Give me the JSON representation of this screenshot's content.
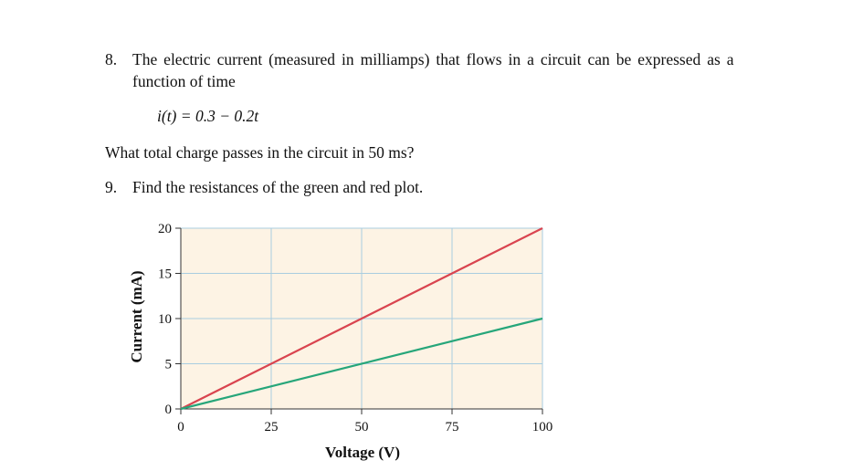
{
  "questions": {
    "q8": {
      "number": "8.",
      "line1": "The electric current (measured in milliamps) that flows in a circuit can be expressed as a",
      "line2": "function of time",
      "equation": "i(t) = 0.3 − 0.2t",
      "line3": "What total charge passes in the circuit in 50 ms?"
    },
    "q9": {
      "number": "9.",
      "text": "Find the resistances of the green and red plot."
    }
  },
  "colors": {
    "plot_background": "#fdf3e4",
    "grid": "#a9cde0",
    "axis": "#333333",
    "red_series": "#d9444f",
    "green_series": "#26a67a"
  },
  "chart_data": {
    "type": "line",
    "xlabel": "Voltage (V)",
    "ylabel": "Current (mA)",
    "xlim": [
      0,
      100
    ],
    "ylim": [
      0,
      20
    ],
    "xticks": [
      0,
      25,
      50,
      75,
      100
    ],
    "yticks": [
      0,
      5,
      10,
      15,
      20
    ],
    "grid": true,
    "series": [
      {
        "color": "#d9444f",
        "x": [
          0,
          100
        ],
        "y": [
          0,
          20
        ]
      },
      {
        "color": "#26a67a",
        "x": [
          0,
          100
        ],
        "y": [
          0,
          10
        ]
      }
    ]
  }
}
